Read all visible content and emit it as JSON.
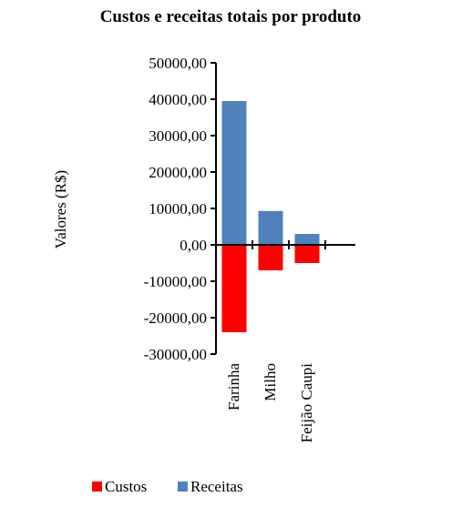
{
  "chart_data": {
    "type": "bar",
    "title": "Custos e receitas totais por produto",
    "xlabel": "",
    "ylabel": "Valores (R$)",
    "categories": [
      "Farinha",
      "Milho",
      "Feijão Caupi"
    ],
    "series": [
      {
        "name": "Custos",
        "color": "#ff0000",
        "values": [
          -24000,
          -7000,
          -5000
        ]
      },
      {
        "name": "Receitas",
        "color": "#4f81bd",
        "values": [
          39500,
          9300,
          3000
        ]
      }
    ],
    "ylim": [
      -30000,
      50000
    ],
    "yticks": [
      50000,
      40000,
      30000,
      20000,
      10000,
      0,
      -10000,
      -20000,
      -30000
    ],
    "ytick_labels": [
      "50000,00",
      "40000,00",
      "30000,00",
      "20000,00",
      "10000,00",
      "0,00",
      "-10000,00",
      "-20000,00",
      "-30000,00"
    ],
    "grid": false,
    "legend_position": "bottom",
    "stacked": true
  }
}
